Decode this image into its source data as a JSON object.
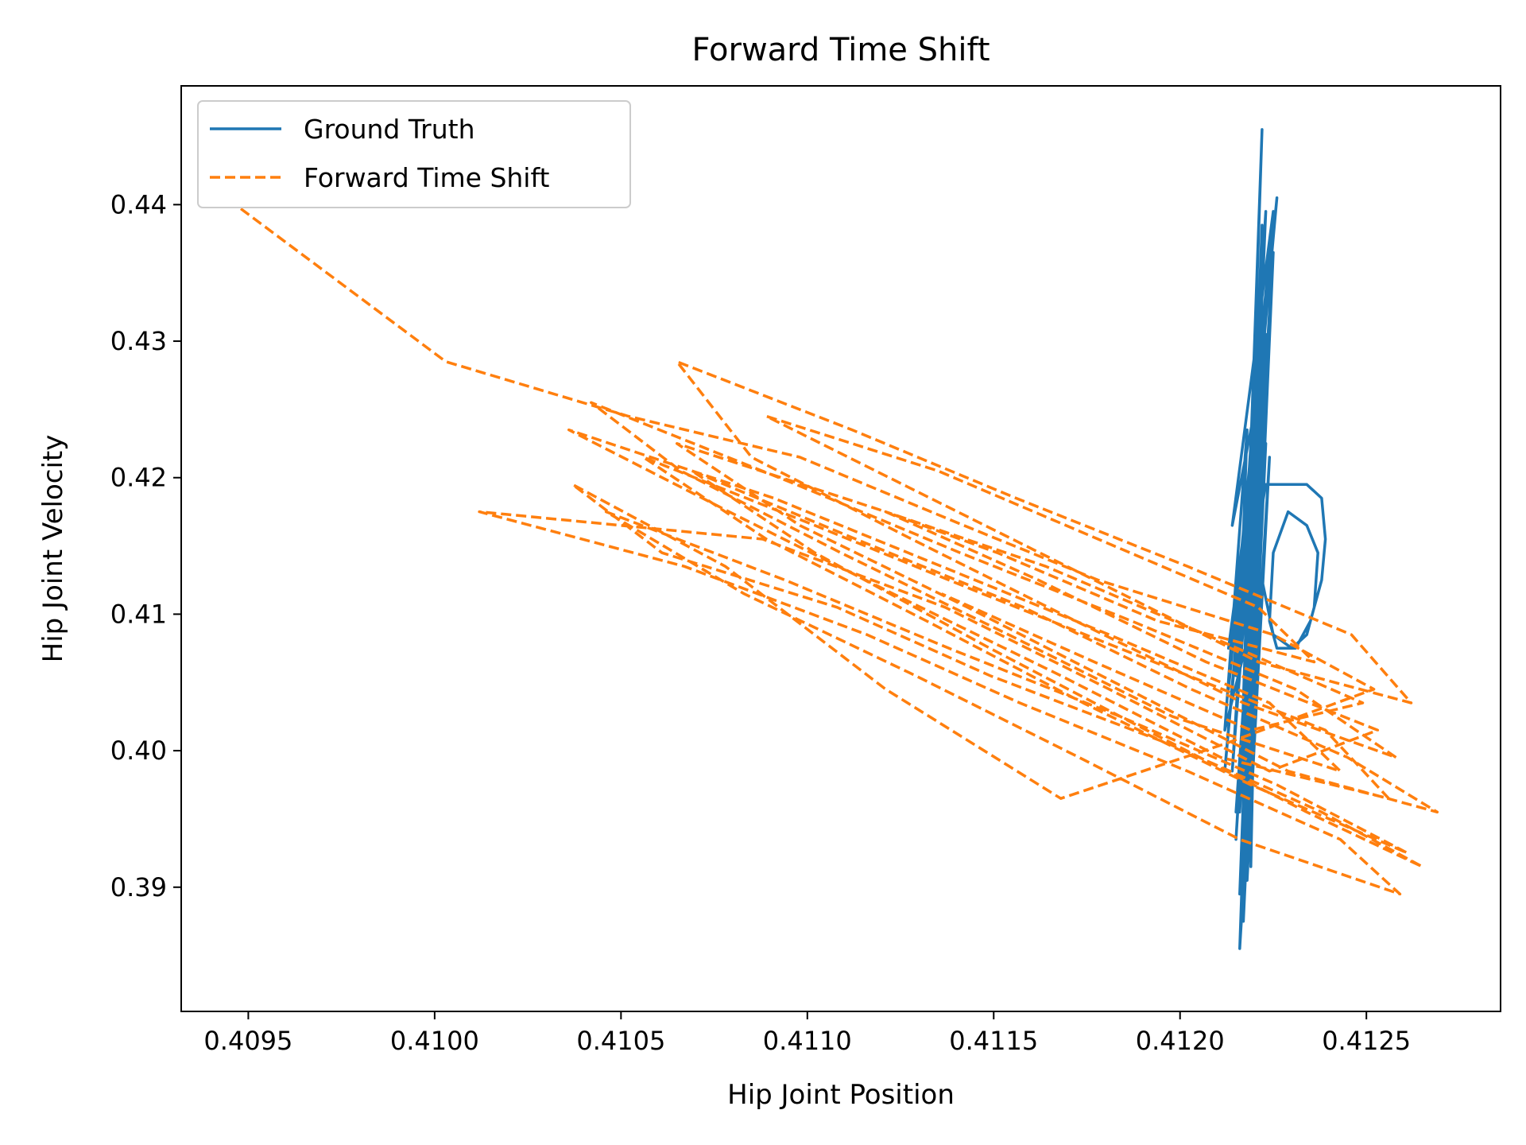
{
  "chart_data": {
    "type": "line",
    "title": "Forward Time Shift",
    "xlabel": "Hip Joint Position",
    "ylabel": "Hip Joint Velocity",
    "xlim": [
      0.40932,
      0.41286
    ],
    "ylim": [
      0.3809,
      0.4487
    ],
    "xticks": [
      0.4095,
      0.41,
      0.4105,
      0.411,
      0.4115,
      0.412,
      0.4125
    ],
    "xtick_labels": [
      "0.4095",
      "0.4100",
      "0.4105",
      "0.4110",
      "0.4115",
      "0.4120",
      "0.4125"
    ],
    "yticks": [
      0.39,
      0.4,
      0.41,
      0.42,
      0.43,
      0.44
    ],
    "ytick_labels": [
      "0.39",
      "0.40",
      "0.41",
      "0.42",
      "0.43",
      "0.44"
    ],
    "grid": false,
    "legend_position": "upper left",
    "series": [
      {
        "name": "Ground Truth",
        "color": "#1f77b4",
        "style": "solid",
        "x": [
          0.41218,
          0.41222,
          0.41216,
          0.41224,
          0.41214,
          0.41225,
          0.41212,
          0.41226,
          0.41213,
          0.41224,
          0.41215,
          0.41223,
          0.41216,
          0.41222,
          0.41217,
          0.41221,
          0.41218,
          0.41225,
          0.41215,
          0.41223,
          0.41214,
          0.41222,
          0.41216,
          0.4122,
          0.41219,
          0.41222,
          0.41216,
          0.41224,
          0.41218,
          0.41221,
          0.41217,
          0.41223,
          0.41215,
          0.41224,
          0.41213,
          0.41222,
          0.41212,
          0.41218,
          0.41216,
          0.41223,
          0.41228,
          0.41234,
          0.41238,
          0.41239,
          0.41238,
          0.41235,
          0.41231,
          0.41226,
          0.41224,
          0.41225,
          0.41229,
          0.41234,
          0.41237,
          0.41236,
          0.41234,
          0.4123,
          0.41225,
          0.41222,
          0.41219,
          0.41217,
          0.41221,
          0.41219,
          0.41222,
          0.41218,
          0.41221,
          0.41219,
          0.4122
        ],
        "y": [
          0.4145,
          0.4455,
          0.3955,
          0.4305,
          0.4165,
          0.4395,
          0.3985,
          0.4405,
          0.4045,
          0.4365,
          0.4055,
          0.4395,
          0.3955,
          0.4385,
          0.4005,
          0.4265,
          0.3925,
          0.4365,
          0.3935,
          0.4305,
          0.3985,
          0.4325,
          0.3895,
          0.4175,
          0.3915,
          0.4325,
          0.3855,
          0.4215,
          0.3905,
          0.4195,
          0.3875,
          0.4225,
          0.3955,
          0.4305,
          0.4075,
          0.4125,
          0.4015,
          0.4235,
          0.4085,
          0.4195,
          0.4195,
          0.4195,
          0.4185,
          0.4155,
          0.4125,
          0.4095,
          0.4075,
          0.4075,
          0.4095,
          0.4145,
          0.4175,
          0.4165,
          0.4145,
          0.4105,
          0.4085,
          0.4075,
          0.4085,
          0.4125,
          0.4055,
          0.3985,
          0.4155,
          0.4035,
          0.4115,
          0.3935,
          0.4085,
          0.3975,
          0.4035
        ]
      },
      {
        "name": "Forward Time Shift",
        "color": "#ff7f0e",
        "style": "dashed",
        "x": [
          0.40948,
          0.41003,
          0.41052,
          0.41098,
          0.41142,
          0.41178,
          0.41225,
          0.41252,
          0.41212,
          0.41168,
          0.41121,
          0.41078,
          0.41037,
          0.41061,
          0.41108,
          0.41149,
          0.41197,
          0.41238,
          0.41265,
          0.41234,
          0.41191,
          0.41149,
          0.41102,
          0.41069,
          0.41113,
          0.41158,
          0.41203,
          0.41245,
          0.41269,
          0.41229,
          0.41186,
          0.41143,
          0.41098,
          0.41065,
          0.41121,
          0.41162,
          0.41207,
          0.41253,
          0.41224,
          0.41181,
          0.41137,
          0.41088,
          0.41012,
          0.41067,
          0.41116,
          0.41157,
          0.41202,
          0.41243,
          0.41259,
          0.41216,
          0.41173,
          0.41129,
          0.41083,
          0.41046,
          0.41094,
          0.41138,
          0.41184,
          0.41226,
          0.41261,
          0.41219,
          0.41174,
          0.41132,
          0.41089,
          0.41056,
          0.41102,
          0.41147,
          0.41193,
          0.41239,
          0.41256,
          0.41211,
          0.41168,
          0.41123,
          0.41079,
          0.41036,
          0.41091,
          0.41136,
          0.41181,
          0.41224,
          0.41243,
          0.41198,
          0.41154,
          0.41109,
          0.41066,
          0.41042,
          0.41097,
          0.41141,
          0.41187,
          0.41231,
          0.41258,
          0.41217,
          0.41172,
          0.41128,
          0.41085,
          0.41065,
          0.41112,
          0.41156,
          0.41202,
          0.41246,
          0.41262,
          0.41221,
          0.41177,
          0.41133,
          0.41089,
          0.41135,
          0.41178,
          0.41221,
          0.41236,
          0.41194,
          0.41151,
          0.41121,
          0.41164,
          0.41207,
          0.41249,
          0.41219,
          0.41177,
          0.41136
        ],
        "y": [
          0.4397,
          0.4285,
          0.4245,
          0.4215,
          0.4165,
          0.4125,
          0.4085,
          0.4045,
          0.4005,
          0.3965,
          0.4045,
          0.4135,
          0.4195,
          0.4145,
          0.4105,
          0.4055,
          0.4005,
          0.3955,
          0.3915,
          0.3955,
          0.4015,
          0.4075,
          0.4145,
          0.4205,
          0.4155,
          0.4105,
          0.4045,
          0.3995,
          0.3955,
          0.3985,
          0.4045,
          0.4105,
          0.4165,
          0.4225,
          0.4175,
          0.4125,
          0.4065,
          0.4015,
          0.3985,
          0.4045,
          0.4105,
          0.4155,
          0.4175,
          0.4135,
          0.4085,
          0.4035,
          0.3985,
          0.3935,
          0.3895,
          0.3935,
          0.3995,
          0.4055,
          0.4115,
          0.4175,
          0.4125,
          0.4075,
          0.4025,
          0.3975,
          0.3925,
          0.3975,
          0.4035,
          0.4095,
          0.4155,
          0.4215,
          0.4165,
          0.4115,
          0.4065,
          0.4015,
          0.3965,
          0.3995,
          0.4055,
          0.4115,
          0.4175,
          0.4235,
          0.4185,
          0.4135,
          0.4085,
          0.4035,
          0.3985,
          0.4025,
          0.4085,
          0.4145,
          0.4205,
          0.4255,
          0.4195,
          0.4145,
          0.4095,
          0.4045,
          0.3995,
          0.4035,
          0.4095,
          0.4155,
          0.4215,
          0.4285,
          0.4235,
          0.4185,
          0.4135,
          0.4085,
          0.4035,
          0.4065,
          0.4125,
          0.4185,
          0.4245,
          0.4205,
          0.4155,
          0.4105,
          0.4065,
          0.4095,
          0.4145,
          0.4175,
          0.4135,
          0.4085,
          0.4035,
          0.4015,
          0.4065,
          0.4115
        ]
      }
    ]
  }
}
